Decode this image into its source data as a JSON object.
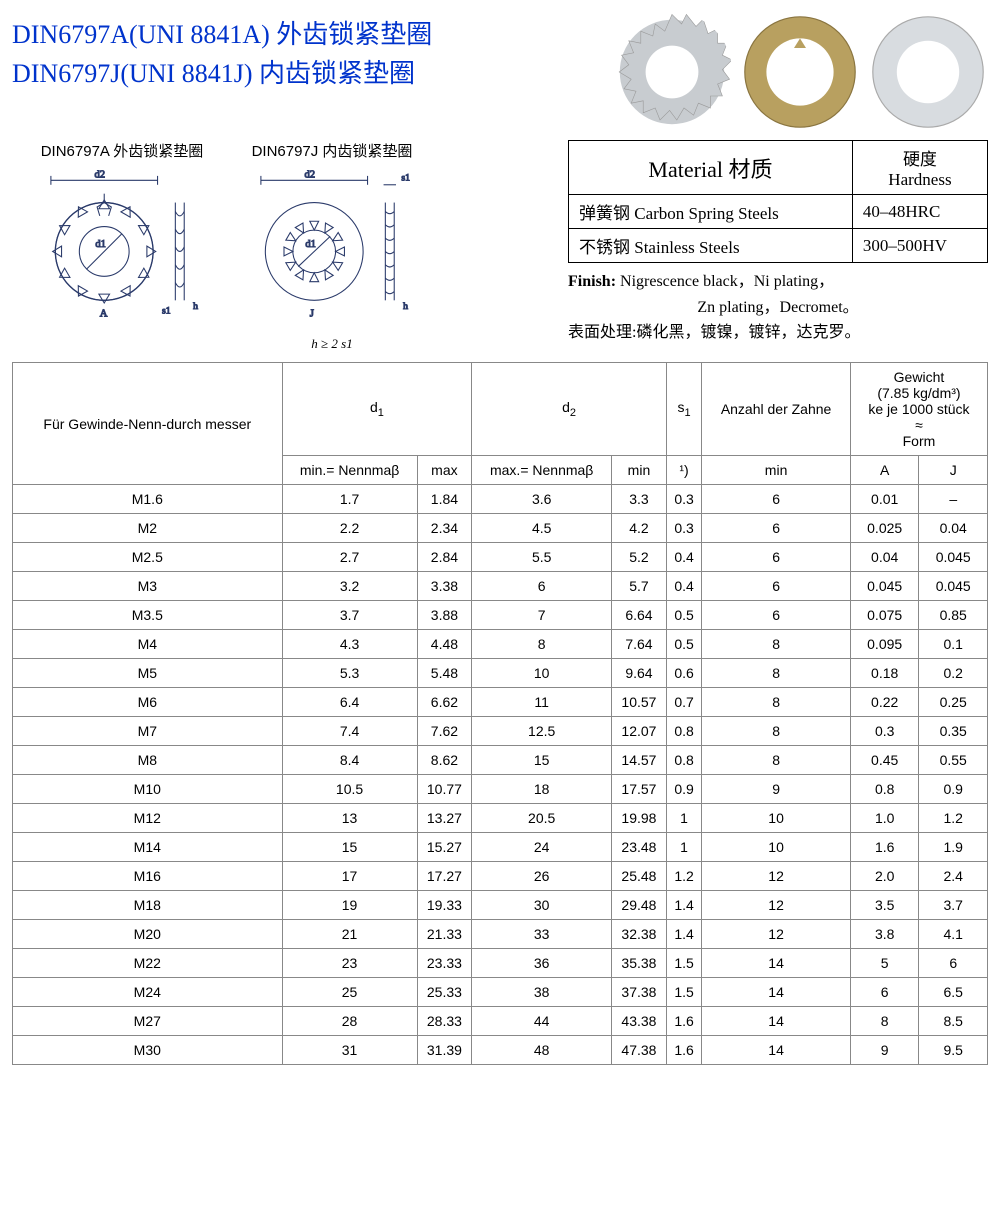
{
  "titles": {
    "line1": "DIN6797A(UNI 8841A) 外齿锁紧垫圈",
    "line2": "DIN6797J(UNI 8841J)  内齿锁紧垫圈"
  },
  "diagrams": {
    "a_label": "DIN6797A 外齿锁紧垫圈",
    "j_label": "DIN6797J 内齿锁紧垫圈",
    "note": "h ≥ 2 s1",
    "d1": "d1",
    "d2": "d2",
    "s1": "s1",
    "h": "h",
    "A": "A",
    "J": "J"
  },
  "material": {
    "header_material": "Material  材质",
    "header_hardness_cn": "硬度",
    "header_hardness_en": "Hardness",
    "row1_mat": "弹簧钢 Carbon Spring  Steels",
    "row1_hard": "40–48HRC",
    "row2_mat": "不锈钢 Stainless Steels",
    "row2_hard": "300–500HV",
    "finish_label": "Finish:",
    "finish_en": " Nigrescence black，Ni plating，",
    "finish_en2": "Zn plating，Decromet。",
    "finish_cn": "表面处理:磷化黑，镀镍，镀锌，达克罗。"
  },
  "spec": {
    "headers": {
      "col1": "Für Gewinde-Nenn-durch messer",
      "d1": "d",
      "d2": "d",
      "s1": "s",
      "anzahl": "Anzahl der Zahne",
      "gewicht_l1": "Gewicht",
      "gewicht_l2": "(7.85 kg/dm³)",
      "gewicht_l3": "ke je 1000 stück",
      "gewicht_l4": "≈",
      "gewicht_l5": "Form",
      "sub_min_nenn": "min.= Nennmaβ",
      "sub_max": "max",
      "sub_max_nenn": "max.= Nennmaβ",
      "sub_min": "min",
      "sub_s1note": "¹)",
      "sub_min2": "min",
      "sub_A": "A",
      "sub_J": "J"
    },
    "rows": [
      [
        "M1.6",
        "1.7",
        "1.84",
        "3.6",
        "3.3",
        "0.3",
        "6",
        "0.01",
        "–"
      ],
      [
        "M2",
        "2.2",
        "2.34",
        "4.5",
        "4.2",
        "0.3",
        "6",
        "0.025",
        "0.04"
      ],
      [
        "M2.5",
        "2.7",
        "2.84",
        "5.5",
        "5.2",
        "0.4",
        "6",
        "0.04",
        "0.045"
      ],
      [
        "M3",
        "3.2",
        "3.38",
        "6",
        "5.7",
        "0.4",
        "6",
        "0.045",
        "0.045"
      ],
      [
        "M3.5",
        "3.7",
        "3.88",
        "7",
        "6.64",
        "0.5",
        "6",
        "0.075",
        "0.85"
      ],
      [
        "M4",
        "4.3",
        "4.48",
        "8",
        "7.64",
        "0.5",
        "8",
        "0.095",
        "0.1"
      ],
      [
        "M5",
        "5.3",
        "5.48",
        "10",
        "9.64",
        "0.6",
        "8",
        "0.18",
        "0.2"
      ],
      [
        "M6",
        "6.4",
        "6.62",
        "11",
        "10.57",
        "0.7",
        "8",
        "0.22",
        "0.25"
      ],
      [
        "M7",
        "7.4",
        "7.62",
        "12.5",
        "12.07",
        "0.8",
        "8",
        "0.3",
        "0.35"
      ],
      [
        "M8",
        "8.4",
        "8.62",
        "15",
        "14.57",
        "0.8",
        "8",
        "0.45",
        "0.55"
      ],
      [
        "M10",
        "10.5",
        "10.77",
        "18",
        "17.57",
        "0.9",
        "9",
        "0.8",
        "0.9"
      ],
      [
        "M12",
        "13",
        "13.27",
        "20.5",
        "19.98",
        "1",
        "10",
        "1.0",
        "1.2"
      ],
      [
        "M14",
        "15",
        "15.27",
        "24",
        "23.48",
        "1",
        "10",
        "1.6",
        "1.9"
      ],
      [
        "M16",
        "17",
        "17.27",
        "26",
        "25.48",
        "1.2",
        "12",
        "2.0",
        "2.4"
      ],
      [
        "M18",
        "19",
        "19.33",
        "30",
        "29.48",
        "1.4",
        "12",
        "3.5",
        "3.7"
      ],
      [
        "M20",
        "21",
        "21.33",
        "33",
        "32.38",
        "1.4",
        "12",
        "3.8",
        "4.1"
      ],
      [
        "M22",
        "23",
        "23.33",
        "36",
        "35.38",
        "1.5",
        "14",
        "5",
        "6"
      ],
      [
        "M24",
        "25",
        "25.33",
        "38",
        "37.38",
        "1.5",
        "14",
        "6",
        "6.5"
      ],
      [
        "M27",
        "28",
        "28.33",
        "44",
        "43.38",
        "1.6",
        "14",
        "8",
        "8.5"
      ],
      [
        "M30",
        "31",
        "31.39",
        "48",
        "47.38",
        "1.6",
        "14",
        "9",
        "9.5"
      ]
    ]
  },
  "colors": {
    "title": "#0033cc",
    "border": "#888888",
    "text": "#000000",
    "washer1": "#c8ccd0",
    "washer2": "#b8a060",
    "washer3": "#d8dce0"
  }
}
